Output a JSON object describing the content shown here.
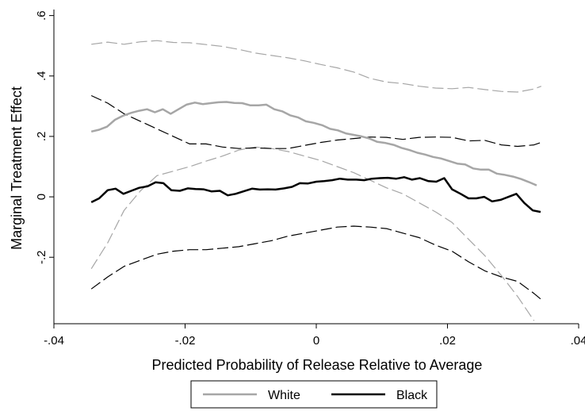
{
  "chart_data": {
    "type": "line",
    "title": "",
    "xlabel": "Predicted Probability of Release Relative to Average",
    "ylabel": "Marginal Treatment Effect",
    "xlim": [
      -0.04,
      0.04
    ],
    "ylim": [
      -0.42,
      0.62
    ],
    "x_ticks": [
      -0.04,
      -0.02,
      0,
      0.02,
      0.04
    ],
    "x_tick_labels": [
      "-.04",
      "-.02",
      "0",
      ".02",
      ".04"
    ],
    "y_ticks": [
      -0.2,
      0,
      0.2,
      0.4,
      0.6
    ],
    "y_tick_labels": [
      "-.2",
      "0",
      ".2",
      ".4",
      ".6"
    ],
    "grid": false,
    "legend_position": "bottom-center",
    "colors": {
      "white": "#a6a6a6",
      "black": "#000000"
    },
    "series": [
      {
        "name": "White",
        "role": "estimate",
        "color": "#a6a6a6",
        "x": [
          -0.0343,
          -0.0331,
          -0.0319,
          -0.0307,
          -0.0295,
          -0.0282,
          -0.027,
          -0.0258,
          -0.0246,
          -0.0234,
          -0.0222,
          -0.021,
          -0.0198,
          -0.0185,
          -0.0173,
          -0.0161,
          -0.0149,
          -0.0137,
          -0.0125,
          -0.0113,
          -0.0101,
          -0.0088,
          -0.0076,
          -0.0064,
          -0.0052,
          -0.004,
          -0.0028,
          -0.0016,
          -0.0004,
          0.0009,
          0.0021,
          0.0033,
          0.0045,
          0.0057,
          0.0069,
          0.0081,
          0.0093,
          0.0106,
          0.0118,
          0.013,
          0.0142,
          0.0154,
          0.0166,
          0.0178,
          0.019,
          0.0203,
          0.0215,
          0.0227,
          0.0239,
          0.0251,
          0.0263,
          0.0275,
          0.0287,
          0.03,
          0.0312,
          0.0324,
          0.0336
        ],
        "y": [
          0.216,
          0.222,
          0.232,
          0.255,
          0.268,
          0.278,
          0.285,
          0.29,
          0.28,
          0.29,
          0.275,
          0.29,
          0.305,
          0.312,
          0.307,
          0.31,
          0.313,
          0.314,
          0.311,
          0.31,
          0.303,
          0.303,
          0.305,
          0.29,
          0.283,
          0.27,
          0.263,
          0.25,
          0.245,
          0.237,
          0.225,
          0.22,
          0.21,
          0.205,
          0.2,
          0.193,
          0.182,
          0.178,
          0.172,
          0.162,
          0.155,
          0.146,
          0.14,
          0.132,
          0.127,
          0.118,
          0.11,
          0.107,
          0.094,
          0.09,
          0.09,
          0.077,
          0.073,
          0.067,
          0.059,
          0.049,
          0.038
        ]
      },
      {
        "name": "White",
        "role": "upper-ci",
        "color": "#a6a6a6",
        "x": [
          -0.0343,
          -0.0318,
          -0.0293,
          -0.0268,
          -0.0243,
          -0.0218,
          -0.0193,
          -0.0168,
          -0.0143,
          -0.0118,
          -0.0093,
          -0.0068,
          -0.0043,
          -0.0018,
          0.0007,
          0.0032,
          0.0057,
          0.0082,
          0.0107,
          0.0132,
          0.0157,
          0.0182,
          0.0207,
          0.0232,
          0.0257,
          0.0282,
          0.0307,
          0.0332,
          0.0343
        ],
        "y": [
          0.505,
          0.512,
          0.505,
          0.513,
          0.517,
          0.511,
          0.51,
          0.504,
          0.498,
          0.488,
          0.476,
          0.468,
          0.46,
          0.45,
          0.438,
          0.427,
          0.413,
          0.392,
          0.38,
          0.375,
          0.366,
          0.36,
          0.358,
          0.362,
          0.355,
          0.349,
          0.347,
          0.357,
          0.366
        ]
      },
      {
        "name": "White",
        "role": "lower-ci",
        "color": "#a6a6a6",
        "x": [
          -0.0343,
          -0.0318,
          -0.0293,
          -0.0268,
          -0.0243,
          -0.0218,
          -0.0193,
          -0.0168,
          -0.0143,
          -0.0118,
          -0.0093,
          -0.0068,
          -0.0043,
          -0.0018,
          0.0007,
          0.0032,
          0.0057,
          0.0082,
          0.0107,
          0.0132,
          0.0157,
          0.0182,
          0.0207,
          0.0232,
          0.0257,
          0.0282,
          0.0307,
          0.0332
        ],
        "y": [
          -0.238,
          -0.152,
          -0.045,
          0.02,
          0.07,
          0.085,
          0.1,
          0.118,
          0.135,
          0.155,
          0.165,
          0.16,
          0.15,
          0.135,
          0.12,
          0.1,
          0.08,
          0.055,
          0.03,
          0.01,
          -0.02,
          -0.05,
          -0.085,
          -0.14,
          -0.195,
          -0.26,
          -0.33,
          -0.41
        ]
      },
      {
        "name": "Black",
        "role": "estimate",
        "color": "#000000",
        "x": [
          -0.0343,
          -0.0331,
          -0.0318,
          -0.0306,
          -0.0294,
          -0.0282,
          -0.027,
          -0.0257,
          -0.0245,
          -0.0233,
          -0.0221,
          -0.0208,
          -0.0196,
          -0.0184,
          -0.0172,
          -0.016,
          -0.0147,
          -0.0135,
          -0.0123,
          -0.0111,
          -0.0098,
          -0.0086,
          -0.0074,
          -0.0062,
          -0.0049,
          -0.0037,
          -0.0025,
          -0.0013,
          0.0,
          0.0012,
          0.0024,
          0.0036,
          0.0048,
          0.0061,
          0.0073,
          0.0085,
          0.0097,
          0.0109,
          0.0122,
          0.0134,
          0.0146,
          0.0158,
          0.0171,
          0.0183,
          0.0195,
          0.0207,
          0.022,
          0.0232,
          0.0244,
          0.0256,
          0.0268,
          0.0281,
          0.0293,
          0.0305,
          0.0317,
          0.033,
          0.0342
        ],
        "y": [
          -0.018,
          -0.005,
          0.022,
          0.027,
          0.01,
          0.02,
          0.03,
          0.035,
          0.048,
          0.045,
          0.022,
          0.02,
          0.028,
          0.026,
          0.025,
          0.018,
          0.02,
          0.005,
          0.01,
          0.018,
          0.027,
          0.024,
          0.025,
          0.024,
          0.028,
          0.033,
          0.045,
          0.044,
          0.05,
          0.052,
          0.055,
          0.06,
          0.057,
          0.057,
          0.055,
          0.06,
          0.062,
          0.063,
          0.06,
          0.065,
          0.057,
          0.062,
          0.052,
          0.05,
          0.062,
          0.025,
          0.01,
          -0.005,
          -0.005,
          0.0,
          -0.015,
          -0.01,
          0.0,
          0.01,
          -0.02,
          -0.045,
          -0.05
        ]
      },
      {
        "name": "Black",
        "role": "upper-ci",
        "color": "#000000",
        "x": [
          -0.0343,
          -0.0318,
          -0.0293,
          -0.0268,
          -0.0243,
          -0.0218,
          -0.0193,
          -0.0168,
          -0.0143,
          -0.0118,
          -0.0093,
          -0.0068,
          -0.0043,
          -0.0018,
          0.0007,
          0.0032,
          0.0057,
          0.0082,
          0.0107,
          0.0132,
          0.0157,
          0.0182,
          0.0207,
          0.0232,
          0.0257,
          0.0282,
          0.0307,
          0.0332,
          0.0343
        ],
        "y": [
          0.335,
          0.31,
          0.275,
          0.25,
          0.225,
          0.2,
          0.175,
          0.175,
          0.165,
          0.16,
          0.162,
          0.16,
          0.16,
          0.17,
          0.18,
          0.188,
          0.193,
          0.198,
          0.197,
          0.19,
          0.197,
          0.198,
          0.197,
          0.185,
          0.187,
          0.172,
          0.167,
          0.172,
          0.18
        ]
      },
      {
        "name": "Black",
        "role": "lower-ci",
        "color": "#000000",
        "x": [
          -0.0343,
          -0.0318,
          -0.0293,
          -0.0268,
          -0.0243,
          -0.0218,
          -0.0193,
          -0.0168,
          -0.0143,
          -0.0118,
          -0.0093,
          -0.0068,
          -0.0043,
          -0.0018,
          0.0007,
          0.0032,
          0.0057,
          0.0082,
          0.0107,
          0.0132,
          0.0157,
          0.0182,
          0.0207,
          0.0232,
          0.0257,
          0.0282,
          0.0307,
          0.0332,
          0.0343
        ],
        "y": [
          -0.305,
          -0.265,
          -0.23,
          -0.21,
          -0.19,
          -0.18,
          -0.175,
          -0.175,
          -0.17,
          -0.165,
          -0.155,
          -0.145,
          -0.13,
          -0.12,
          -0.11,
          -0.1,
          -0.097,
          -0.1,
          -0.105,
          -0.12,
          -0.135,
          -0.16,
          -0.18,
          -0.215,
          -0.245,
          -0.265,
          -0.28,
          -0.32,
          -0.34
        ]
      }
    ]
  }
}
